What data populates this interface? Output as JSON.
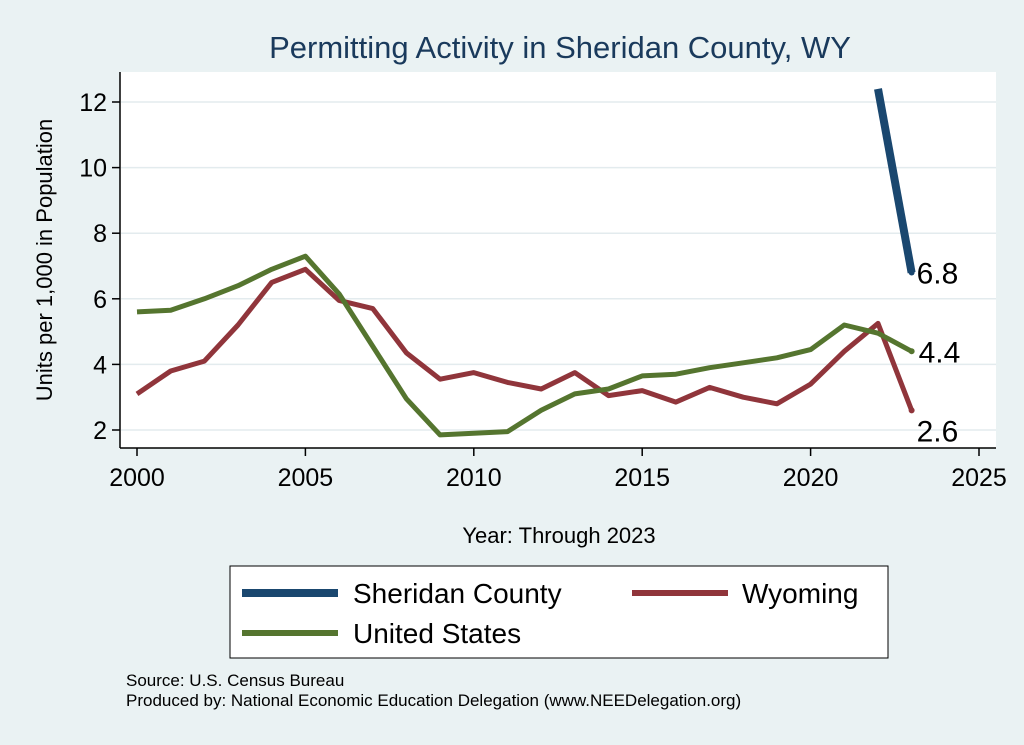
{
  "chart_data": {
    "type": "line",
    "title": "Permitting Activity in Sheridan County, WY",
    "xlabel": "Year: Through 2023",
    "ylabel": "Units per 1,000 in Population",
    "xlim": [
      2000,
      2025
    ],
    "ylim": [
      1.5,
      12.9
    ],
    "x_ticks": [
      2000,
      2005,
      2010,
      2015,
      2020,
      2025
    ],
    "y_ticks": [
      2,
      4,
      6,
      8,
      10,
      12
    ],
    "grid": true,
    "legend_position": "bottom",
    "series": [
      {
        "name": "Sheridan County",
        "color": "#1a476f",
        "x": [
          2022,
          2023
        ],
        "values": [
          12.4,
          6.8
        ],
        "end_label": "6.8"
      },
      {
        "name": "Wyoming",
        "color": "#90353b",
        "x": [
          2000,
          2001,
          2002,
          2003,
          2004,
          2005,
          2006,
          2007,
          2008,
          2009,
          2010,
          2011,
          2012,
          2013,
          2014,
          2015,
          2016,
          2017,
          2018,
          2019,
          2020,
          2021,
          2022,
          2023
        ],
        "values": [
          3.1,
          3.8,
          4.1,
          5.2,
          6.5,
          6.9,
          5.95,
          5.7,
          4.35,
          3.55,
          3.75,
          3.45,
          3.25,
          3.75,
          3.05,
          3.2,
          2.85,
          3.3,
          3.0,
          2.8,
          3.4,
          4.4,
          5.25,
          2.6
        ],
        "end_label": "2.6"
      },
      {
        "name": "United States",
        "color": "#55752f",
        "x": [
          2000,
          2001,
          2002,
          2003,
          2004,
          2005,
          2006,
          2007,
          2008,
          2009,
          2010,
          2011,
          2012,
          2013,
          2014,
          2015,
          2016,
          2017,
          2018,
          2019,
          2020,
          2021,
          2022,
          2023
        ],
        "values": [
          5.6,
          5.65,
          6.0,
          6.4,
          6.9,
          7.3,
          6.15,
          4.55,
          2.95,
          1.85,
          1.9,
          1.95,
          2.6,
          3.1,
          3.25,
          3.65,
          3.7,
          3.9,
          4.05,
          4.2,
          4.45,
          5.2,
          4.95,
          4.4
        ],
        "end_label": "4.4"
      }
    ]
  },
  "footer": {
    "source": "Source: U.S. Census Bureau",
    "produced_by": "Produced by: National Economic Education Delegation (www.NEEDelegation.org)"
  }
}
